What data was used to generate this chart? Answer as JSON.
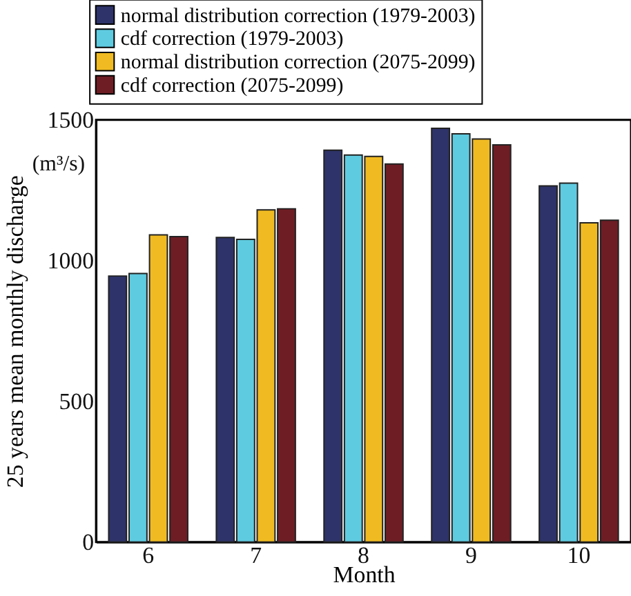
{
  "chart_data": {
    "type": "bar",
    "xlabel": "Month",
    "ylabel": "25 years mean monthly discharge",
    "annotations": [
      "(m³/s)"
    ],
    "categories": [
      "6",
      "7",
      "8",
      "9",
      "10"
    ],
    "series": [
      {
        "name": "normal distribution correction (1979-2003)",
        "color": "#2e3369",
        "values": [
          945,
          1082,
          1392,
          1470,
          1265
        ]
      },
      {
        "name": "cdf correction (1979-2003)",
        "color": "#5fcbe0",
        "values": [
          954,
          1075,
          1375,
          1450,
          1275
        ]
      },
      {
        "name": "normal distribution correction (2075-2099)",
        "color": "#f0bb22",
        "values": [
          1091,
          1180,
          1370,
          1432,
          1134
        ]
      },
      {
        "name": "cdf correction (2075-2099)",
        "color": "#6e1d24",
        "values": [
          1085,
          1184,
          1343,
          1411,
          1143
        ]
      }
    ],
    "ylim": [
      0,
      1500
    ],
    "yticks": [
      0,
      500,
      1000,
      1500
    ],
    "grid": false,
    "legend": "top"
  }
}
